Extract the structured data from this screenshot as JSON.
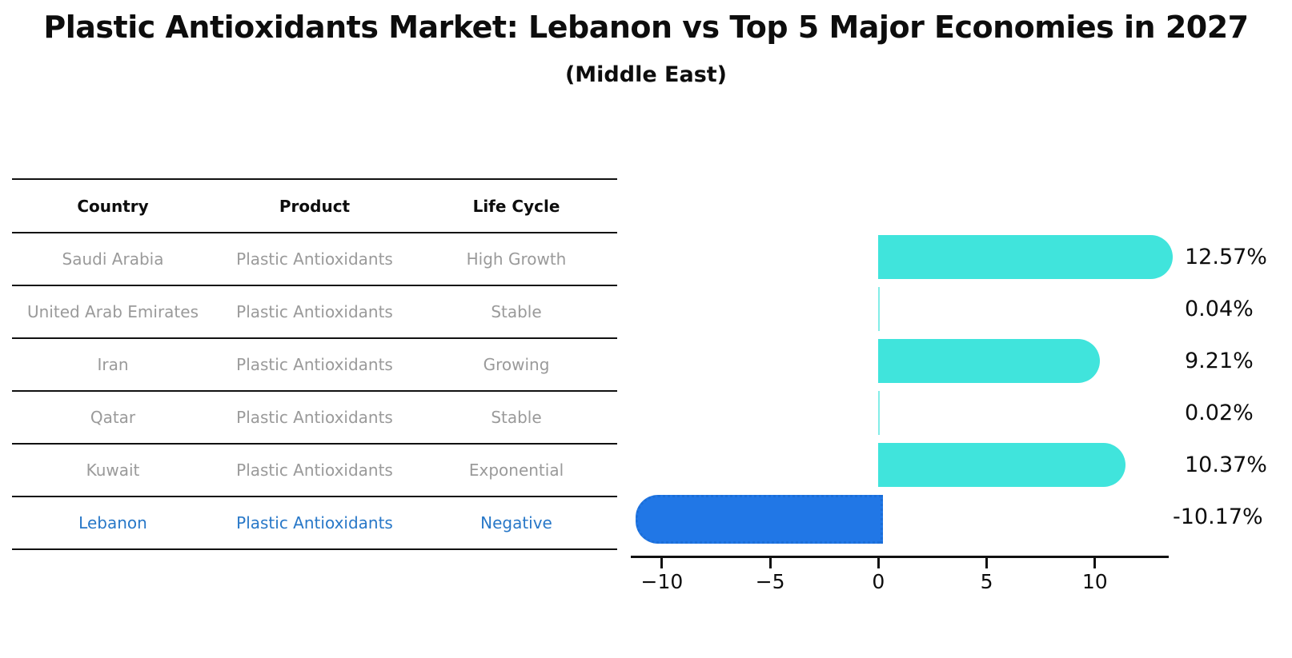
{
  "title": "Plastic Antioxidants Market: Lebanon vs Top 5 Major Economies in 2027",
  "subtitle": "(Middle East)",
  "table": {
    "headers": [
      "Country",
      "Product",
      "Life Cycle"
    ],
    "rows": [
      {
        "country": "Saudi Arabia",
        "product": "Plastic Antioxidants",
        "life_cycle": "High Growth",
        "highlight": false
      },
      {
        "country": "United Arab Emirates",
        "product": "Plastic Antioxidants",
        "life_cycle": "Stable",
        "highlight": false
      },
      {
        "country": "Iran",
        "product": "Plastic Antioxidants",
        "life_cycle": "Growing",
        "highlight": false
      },
      {
        "country": "Qatar",
        "product": "Plastic Antioxidants",
        "life_cycle": "Stable",
        "highlight": false
      },
      {
        "country": "Kuwait",
        "product": "Plastic Antioxidants",
        "life_cycle": "Exponential",
        "highlight": false
      },
      {
        "country": "Lebanon",
        "product": "Plastic Antioxidants",
        "life_cycle": "Negative",
        "highlight": true
      }
    ]
  },
  "chart_data": {
    "type": "bar",
    "orientation": "horizontal",
    "title": "Plastic Antioxidants Market: Lebanon vs Top 5 Major Economies in 2027 (Middle East)",
    "categories": [
      "Saudi Arabia",
      "United Arab Emirates",
      "Iran",
      "Qatar",
      "Kuwait",
      "Lebanon"
    ],
    "values": [
      12.57,
      0.04,
      9.21,
      0.02,
      10.37,
      -10.17
    ],
    "value_labels": [
      "12.57%",
      "0.04%",
      "9.21%",
      "0.02%",
      "10.37%",
      "-10.17%"
    ],
    "x_ticks": [
      -10,
      -5,
      0,
      5,
      10
    ],
    "x_tick_labels": [
      "−10",
      "−5",
      "0",
      "5",
      "10"
    ],
    "xlim": [
      -11.44,
      13.41
    ],
    "grid": false,
    "legend_position": "none",
    "highlight_index": 5,
    "bar_color": "#40e4dc",
    "highlight_bar_color": "#2177e6",
    "highlight_bar_border_color": "#1b6ed8",
    "highlight_text_color": "#2878c8",
    "axis_color": "#111111",
    "label_color": "#0d0d0d",
    "table_text_color": "#9a9a9a"
  }
}
